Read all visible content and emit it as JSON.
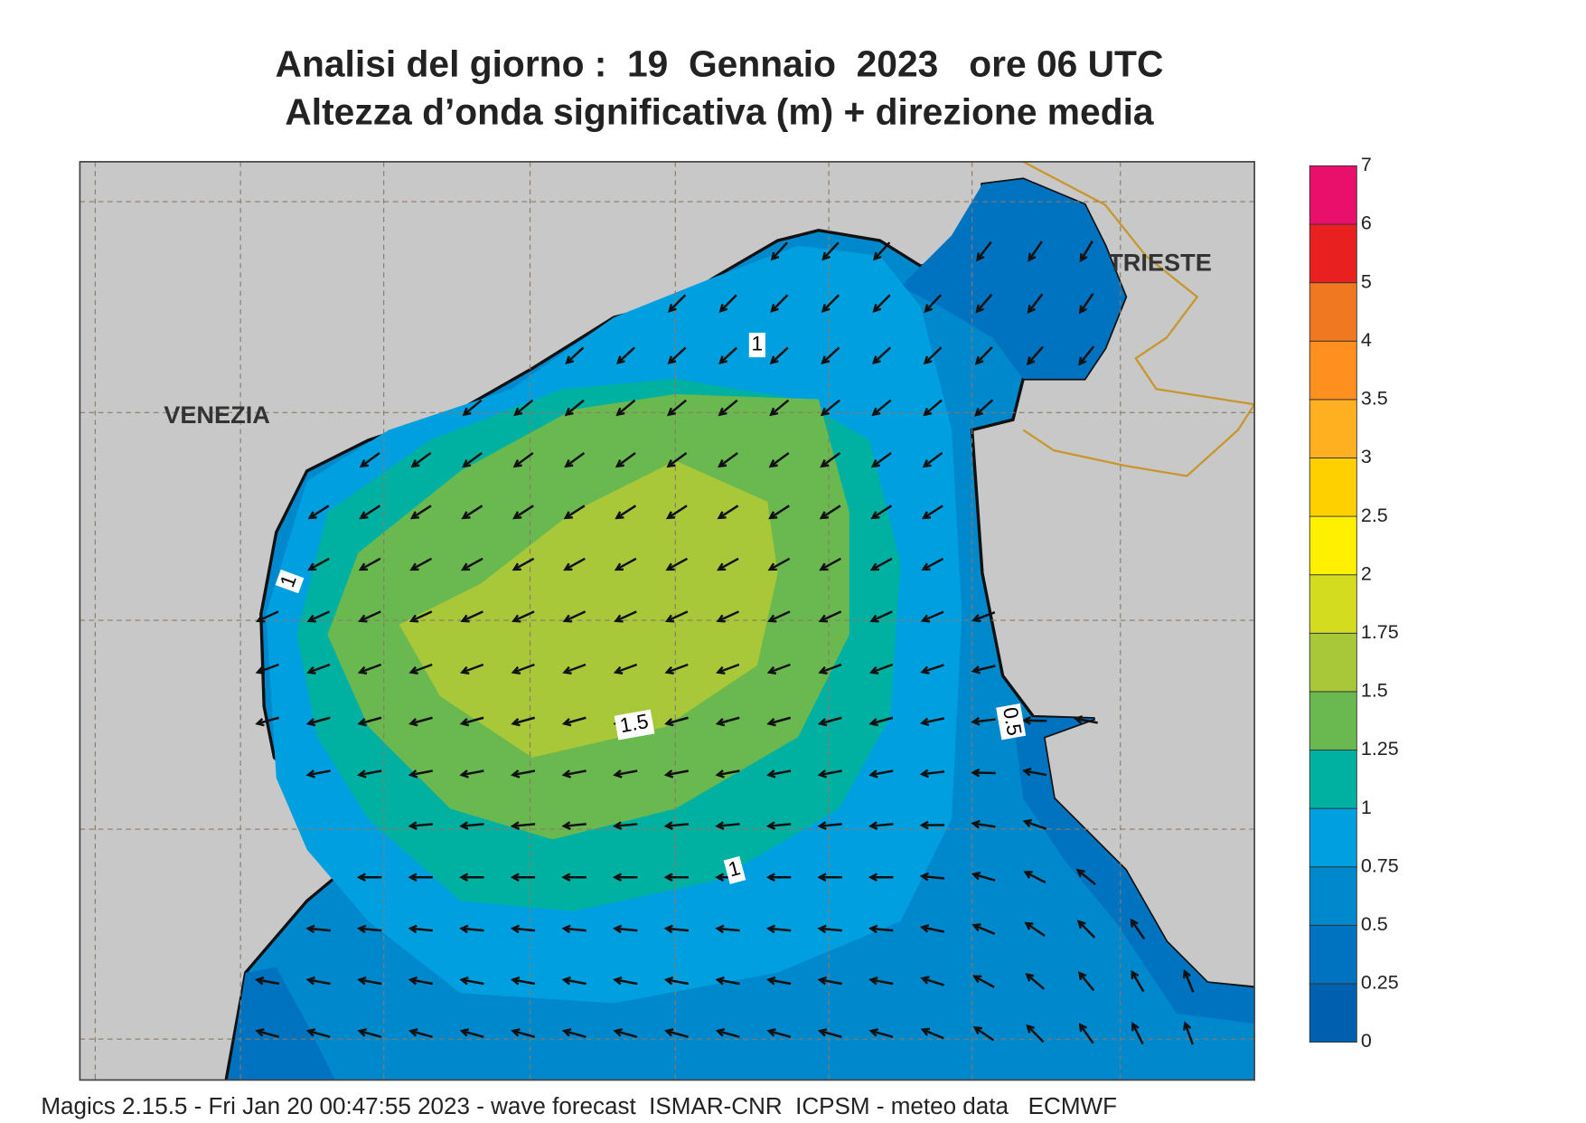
{
  "header": {
    "title": "Analisi del giorno :  19  Gennaio  2023   ore 06 UTC",
    "subtitle": "Altezza d’onda significativa (m) + direzione media"
  },
  "map": {
    "places": [
      "VENEZIA",
      "TRIESTE"
    ],
    "contour_labels": [
      "1",
      "1",
      "1.5",
      "1",
      "0.5"
    ]
  },
  "colorbar": {
    "levels": [
      0,
      0.25,
      0.5,
      0.75,
      1,
      1.25,
      1.5,
      1.75,
      2,
      2.5,
      3,
      3.5,
      4,
      5,
      6,
      7
    ],
    "colors": [
      "#0060b0",
      "#0073c0",
      "#0088cc",
      "#00a0e0",
      "#00b0a0",
      "#6ab850",
      "#a8c83a",
      "#d4dc20",
      "#fff000",
      "#ffd000",
      "#ffb020",
      "#ff9020",
      "#f07820",
      "#e82020",
      "#e8106a"
    ]
  },
  "footer": "Magics 2.15.5 - Fri Jan 20 00:47:55 2023 - wave forecast  ISMAR-CNR  ICPSM - meteo data   ECMWF"
}
